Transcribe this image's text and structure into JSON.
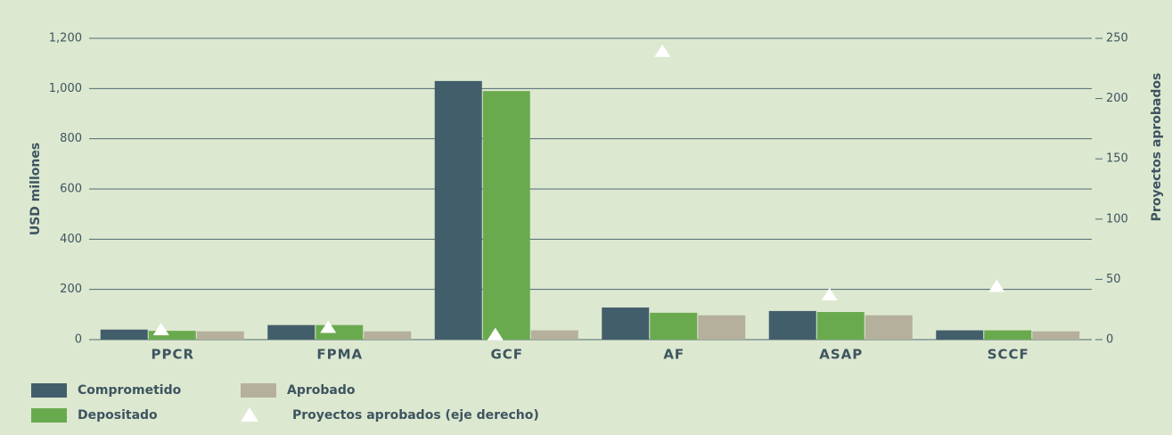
{
  "chart_data": {
    "type": "bar",
    "categories": [
      "PPCR",
      "FPMA",
      "GCF",
      "AF",
      "ASAP",
      "SCCF"
    ],
    "series": [
      {
        "name": "Comprometido",
        "color": "#435e6b",
        "values": [
          40,
          58,
          1030,
          128,
          114,
          37
        ]
      },
      {
        "name": "Depositado",
        "color": "#6aaa4e",
        "values": [
          35,
          58,
          990,
          107,
          110,
          37
        ]
      },
      {
        "name": "Aprobado",
        "color": "#b5b09c",
        "values": [
          33,
          33,
          37,
          97,
          97,
          33
        ]
      },
      {
        "name": "Proyectos aprobados (eje derecho)",
        "color": "#ffffff",
        "axis": "y2",
        "marker": "triangle",
        "values": [
          8,
          10,
          4,
          239,
          37,
          44
        ]
      }
    ],
    "ylabel": "USD millones",
    "y2label": "Proyectos aprobados",
    "ylim": [
      0,
      1200
    ],
    "yticks": [
      0,
      200,
      400,
      600,
      800,
      {
        "value": 1000,
        "label": "1,000"
      },
      {
        "value": 1200,
        "label": "1,200"
      }
    ],
    "y2lim": [
      0,
      250
    ],
    "y2ticks": [
      0,
      50,
      100,
      150,
      200,
      250
    ],
    "grid": true,
    "legend": "bottom"
  }
}
